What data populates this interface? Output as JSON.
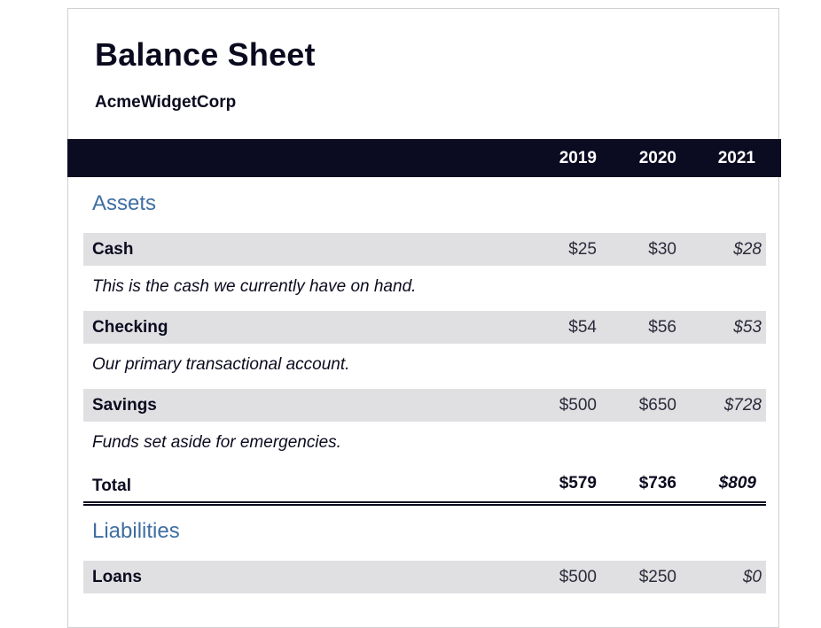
{
  "title": "Balance Sheet",
  "company": "AcmeWidgetCorp",
  "years": [
    "2019",
    "2020",
    "2021"
  ],
  "sections": {
    "assets": {
      "heading": "Assets",
      "rows": [
        {
          "label": "Cash",
          "values": [
            "$25",
            "$30",
            "$28"
          ],
          "description": "This is the cash we currently have on hand."
        },
        {
          "label": "Checking",
          "values": [
            "$54",
            "$56",
            "$53"
          ],
          "description": "Our primary transactional account."
        },
        {
          "label": "Savings",
          "values": [
            "$500",
            "$650",
            "$728"
          ],
          "description": "Funds set aside for emergencies."
        }
      ],
      "total": {
        "label": "Total",
        "values": [
          "$579",
          "$736",
          "$809"
        ]
      }
    },
    "liabilities": {
      "heading": "Liabilities",
      "rows": [
        {
          "label": "Loans",
          "values": [
            "$500",
            "$250",
            "$0"
          ]
        }
      ]
    }
  },
  "colors": {
    "header_bg": "#0b0b22",
    "section_heading": "#3f6ea3",
    "row_bg": "#e0e0e3"
  }
}
